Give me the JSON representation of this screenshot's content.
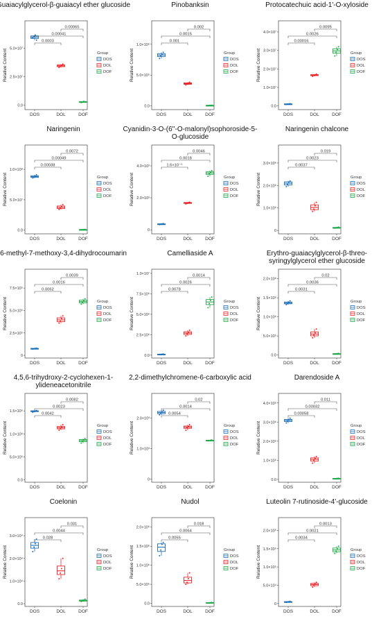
{
  "legend": {
    "title": "Group",
    "groups": [
      "DOS",
      "DOL",
      "DOF"
    ]
  },
  "colors": {
    "DOS": "#1f6fb5",
    "DOL": "#e8262a",
    "DOF": "#22a84a"
  },
  "ylabel": "Relative Content",
  "chart_data": [
    {
      "type": "box",
      "title": "Guaiacylglycerol-β-guaiacyl ether glucoside",
      "categories": [
        "DOS",
        "DOL",
        "DOF"
      ],
      "yticks": [
        {
          "v": 0,
          "l": "0.0"
        },
        {
          "v": 25000000,
          "l": "2.5×10⁷"
        },
        {
          "v": 50000000,
          "l": "5.0×10⁷"
        }
      ],
      "ylim": [
        -4000000,
        74000000
      ],
      "series": [
        {
          "name": "DOS",
          "values": [
            59000000,
            60500000,
            61500000,
            57000000
          ]
        },
        {
          "name": "DOL",
          "values": [
            33000000,
            34000000,
            35000000,
            36000000
          ]
        },
        {
          "name": "DOF",
          "values": [
            2200000,
            2700000,
            3200000,
            3000000
          ]
        }
      ],
      "pvalues": [
        {
          "from": 0,
          "to": 1,
          "label": "0.0003"
        },
        {
          "from": 0,
          "to": 2,
          "label": "0.00041"
        },
        {
          "from": 1,
          "to": 2,
          "label": "0.00065"
        }
      ]
    },
    {
      "type": "box",
      "title": "Pinobanksin",
      "categories": [
        "DOS",
        "DOL",
        "DOF"
      ],
      "yticks": [
        {
          "v": 0,
          "l": "0.0"
        },
        {
          "v": 500000,
          "l": "5.0×10⁵"
        },
        {
          "v": 1000000,
          "l": "1.0×10⁶"
        }
      ],
      "ylim": [
        -60000,
        1380000
      ],
      "series": [
        {
          "name": "DOS",
          "values": [
            770000,
            810000,
            840000,
            870000
          ]
        },
        {
          "name": "DOL",
          "values": [
            340000,
            355000,
            370000,
            385000
          ]
        },
        {
          "name": "DOF",
          "values": [
            5000,
            8000,
            10000,
            12000
          ]
        }
      ],
      "pvalues": [
        {
          "from": 0,
          "to": 1,
          "label": "0.001"
        },
        {
          "from": 0,
          "to": 2,
          "label": "0.0015"
        },
        {
          "from": 1,
          "to": 2,
          "label": "0.002"
        }
      ]
    },
    {
      "type": "box",
      "title": "Protocatechuic acid-1'-O-xyloside",
      "categories": [
        "DOS",
        "DOL",
        "DOF"
      ],
      "yticks": [
        {
          "v": 0,
          "l": "0.0"
        },
        {
          "v": 10000000,
          "l": "1.0×10⁷"
        },
        {
          "v": 20000000,
          "l": "2.0×10⁷"
        },
        {
          "v": 30000000,
          "l": "3.0×10⁷"
        },
        {
          "v": 40000000,
          "l": "4.0×10⁷"
        }
      ],
      "ylim": [
        -2000000,
        46000000
      ],
      "series": [
        {
          "name": "DOS",
          "values": [
            800000,
            1000000,
            1100000,
            1200000
          ]
        },
        {
          "name": "DOL",
          "values": [
            16000000,
            16500000,
            16800000,
            17200000
          ]
        },
        {
          "name": "DOF",
          "values": [
            27000000,
            29000000,
            30500000,
            32000000
          ]
        }
      ],
      "pvalues": [
        {
          "from": 0,
          "to": 1,
          "label": "0.00016"
        },
        {
          "from": 0,
          "to": 2,
          "label": "0.0026"
        },
        {
          "from": 1,
          "to": 2,
          "label": "0.0095"
        }
      ]
    },
    {
      "type": "box",
      "title": "Naringenin",
      "categories": [
        "DOS",
        "DOL",
        "DOF"
      ],
      "yticks": [
        {
          "v": 0,
          "l": "0.0"
        },
        {
          "v": 50000000,
          "l": "5.0×10⁷"
        },
        {
          "v": 100000000,
          "l": "1.0×10⁸"
        }
      ],
      "ylim": [
        -6000000,
        140000000
      ],
      "series": [
        {
          "name": "DOS",
          "values": [
            86000000,
            87000000,
            89000000,
            91000000
          ]
        },
        {
          "name": "DOL",
          "values": [
            34000000,
            36000000,
            39000000,
            42000000
          ]
        },
        {
          "name": "DOF",
          "values": [
            700000,
            900000,
            1100000,
            1300000
          ]
        }
      ],
      "pvalues": [
        {
          "from": 0,
          "to": 1,
          "label": "0.00038"
        },
        {
          "from": 0,
          "to": 2,
          "label": "0.00049"
        },
        {
          "from": 1,
          "to": 2,
          "label": "0.0072"
        }
      ]
    },
    {
      "type": "box",
      "title": "Cyanidin-3-O-(6''-O-malonyl)sophoroside-5-O-glucoside",
      "categories": [
        "DOS",
        "DOL",
        "DOF"
      ],
      "yticks": [
        {
          "v": 0,
          "l": "0"
        },
        {
          "v": 2000,
          "l": "2.0×10³"
        },
        {
          "v": 4000,
          "l": "4.0×10³"
        }
      ],
      "ylim": [
        -250,
        5300
      ],
      "series": [
        {
          "name": "DOS",
          "values": [
            330,
            350,
            370,
            390
          ]
        },
        {
          "name": "DOL",
          "values": [
            1620,
            1660,
            1700,
            1730
          ]
        },
        {
          "name": "DOF",
          "values": [
            3350,
            3500,
            3600,
            3700
          ]
        }
      ],
      "pvalues": [
        {
          "from": 0,
          "to": 1,
          "label": "1.6×10⁻⁵"
        },
        {
          "from": 0,
          "to": 2,
          "label": "0.0018"
        },
        {
          "from": 1,
          "to": 2,
          "label": "0.0046"
        }
      ]
    },
    {
      "type": "box",
      "title": "Naringenin chalcone",
      "categories": [
        "DOS",
        "DOL",
        "DOF"
      ],
      "yticks": [
        {
          "v": 0,
          "l": "0"
        },
        {
          "v": 1000000,
          "l": "1.0×10⁶"
        },
        {
          "v": 2000000,
          "l": "2.0×10⁶"
        },
        {
          "v": 3000000,
          "l": "3.0×10⁶"
        }
      ],
      "ylim": [
        -150000,
        3800000
      ],
      "series": [
        {
          "name": "DOS",
          "values": [
            1950000,
            2050000,
            2150000,
            2200000
          ]
        },
        {
          "name": "DOL",
          "values": [
            850000,
            950000,
            1100000,
            1250000
          ]
        },
        {
          "name": "DOF",
          "values": [
            100000,
            120000,
            130000,
            150000
          ]
        }
      ],
      "pvalues": [
        {
          "from": 0,
          "to": 1,
          "label": "0.0037"
        },
        {
          "from": 0,
          "to": 2,
          "label": "0.0023"
        },
        {
          "from": 1,
          "to": 2,
          "label": "0.019"
        }
      ]
    },
    {
      "type": "box",
      "title": "6-methyl-7-methoxy-3,4-dihydrocoumarin",
      "categories": [
        "DOS",
        "DOL",
        "DOF"
      ],
      "yticks": [
        {
          "v": 0,
          "l": "0"
        },
        {
          "v": 250000,
          "l": "2.5×10⁵"
        },
        {
          "v": 500000,
          "l": "5.0×10⁵"
        },
        {
          "v": 750000,
          "l": "7.5×10⁵"
        }
      ],
      "ylim": [
        -30000,
        960000
      ],
      "series": [
        {
          "name": "DOS",
          "values": [
            70000,
            74000,
            77000,
            80000
          ]
        },
        {
          "name": "DOL",
          "values": [
            360000,
            380000,
            410000,
            440000
          ]
        },
        {
          "name": "DOF",
          "values": [
            570000,
            590000,
            610000,
            630000
          ]
        }
      ],
      "pvalues": [
        {
          "from": 0,
          "to": 1,
          "label": "0.0062"
        },
        {
          "from": 0,
          "to": 2,
          "label": "0.0016"
        },
        {
          "from": 1,
          "to": 2,
          "label": "0.0039"
        }
      ]
    },
    {
      "type": "box",
      "title": "Camelliaside A",
      "categories": [
        "DOS",
        "DOL",
        "DOF"
      ],
      "yticks": [
        {
          "v": 0,
          "l": "0.0"
        },
        {
          "v": 2500000,
          "l": "2.5×10⁶"
        },
        {
          "v": 5000000,
          "l": "5.0×10⁶"
        },
        {
          "v": 7500000,
          "l": "7.5×10⁶"
        },
        {
          "v": 10000000,
          "l": "1.0×10⁷"
        }
      ],
      "ylim": [
        -350000,
        10500000
      ],
      "series": [
        {
          "name": "DOS",
          "values": [
            80000,
            100000,
            120000,
            140000
          ]
        },
        {
          "name": "DOL",
          "values": [
            2350000,
            2600000,
            2800000,
            3050000
          ]
        },
        {
          "name": "DOF",
          "values": [
            5800000,
            6300000,
            6700000,
            7100000
          ]
        }
      ],
      "pvalues": [
        {
          "from": 0,
          "to": 1,
          "label": "0.0078"
        },
        {
          "from": 0,
          "to": 2,
          "label": "0.0026"
        },
        {
          "from": 1,
          "to": 2,
          "label": "0.0014"
        }
      ]
    },
    {
      "type": "box",
      "title": "Erythro-guaiacylglycerol-β-threo-syringylglycerol ether glucoside",
      "categories": [
        "DOS",
        "DOL",
        "DOF"
      ],
      "yticks": [
        {
          "v": 0,
          "l": "0.0"
        },
        {
          "v": 500000,
          "l": "5.0×10⁵"
        },
        {
          "v": 1000000,
          "l": "1.0×10⁶"
        },
        {
          "v": 1500000,
          "l": "1.5×10⁶"
        },
        {
          "v": 2000000,
          "l": "2.0×10⁶"
        }
      ],
      "ylim": [
        -80000,
        2250000
      ],
      "series": [
        {
          "name": "DOS",
          "values": [
            1320000,
            1350000,
            1380000,
            1420000
          ]
        },
        {
          "name": "DOL",
          "values": [
            450000,
            520000,
            580000,
            680000
          ]
        },
        {
          "name": "DOF",
          "values": [
            25000,
            30000,
            35000,
            40000
          ]
        }
      ],
      "pvalues": [
        {
          "from": 0,
          "to": 1,
          "label": "0.0031"
        },
        {
          "from": 0,
          "to": 2,
          "label": "0.0036"
        },
        {
          "from": 1,
          "to": 2,
          "label": "0.02"
        }
      ]
    },
    {
      "type": "box",
      "title": "4,5,6-trihydroxy-2-cyclohexen-1-ylideneacetonitrile",
      "categories": [
        "DOS",
        "DOL",
        "DOF"
      ],
      "yticks": [
        {
          "v": 0,
          "l": "0.0"
        },
        {
          "v": 500000,
          "l": "5.0×10⁵"
        },
        {
          "v": 1000000,
          "l": "1.0×10⁶"
        },
        {
          "v": 1500000,
          "l": "1.5×10⁶"
        }
      ],
      "ylim": [
        -50000,
        1880000
      ],
      "series": [
        {
          "name": "DOS",
          "values": [
            1470000,
            1490000,
            1500000,
            1510000
          ]
        },
        {
          "name": "DOL",
          "values": [
            1080000,
            1120000,
            1150000,
            1200000
          ]
        },
        {
          "name": "DOF",
          "values": [
            800000,
            840000,
            870000,
            900000
          ]
        }
      ],
      "pvalues": [
        {
          "from": 0,
          "to": 1,
          "label": "0.0042"
        },
        {
          "from": 0,
          "to": 2,
          "label": "0.0023"
        },
        {
          "from": 1,
          "to": 2,
          "label": "0.0082"
        }
      ]
    },
    {
      "type": "box",
      "title": "2,2-dimethylchromene-6-carboxylic acid",
      "categories": [
        "DOS",
        "DOL",
        "DOF"
      ],
      "yticks": [
        {
          "v": 0,
          "l": "0"
        },
        {
          "v": 1000,
          "l": "1.0×10³"
        },
        {
          "v": 2000,
          "l": "2.0×10³"
        }
      ],
      "ylim": [
        -100,
        2800
      ],
      "series": [
        {
          "name": "DOS",
          "values": [
            2100,
            2150,
            2200,
            2250
          ]
        },
        {
          "name": "DOL",
          "values": [
            1600,
            1680,
            1720,
            1780
          ]
        },
        {
          "name": "DOF",
          "values": [
            1250,
            1260,
            1270,
            1280
          ]
        }
      ],
      "pvalues": [
        {
          "from": 0,
          "to": 1,
          "label": "0.0054"
        },
        {
          "from": 0,
          "to": 2,
          "label": "0.0014"
        },
        {
          "from": 1,
          "to": 2,
          "label": "0.02"
        }
      ]
    },
    {
      "type": "box",
      "title": "Darendoside A",
      "categories": [
        "DOS",
        "DOL",
        "DOF"
      ],
      "yticks": [
        {
          "v": 0,
          "l": "0.0"
        },
        {
          "v": 1000000,
          "l": "1.0×10⁶"
        },
        {
          "v": 2000000,
          "l": "2.0×10⁶"
        },
        {
          "v": 3000000,
          "l": "3.0×10⁶"
        },
        {
          "v": 4000000,
          "l": "4.0×10⁶"
        }
      ],
      "ylim": [
        -150000,
        4500000
      ],
      "series": [
        {
          "name": "DOS",
          "values": [
            2950000,
            3050000,
            3120000,
            3200000
          ]
        },
        {
          "name": "DOL",
          "values": [
            850000,
            1000000,
            1100000,
            1200000
          ]
        },
        {
          "name": "DOF",
          "values": [
            30000,
            40000,
            50000,
            60000
          ]
        }
      ],
      "pvalues": [
        {
          "from": 0,
          "to": 1,
          "label": "0.00058"
        },
        {
          "from": 0,
          "to": 2,
          "label": "0.00032"
        },
        {
          "from": 1,
          "to": 2,
          "label": "0.011"
        }
      ]
    },
    {
      "type": "box",
      "title": "Coelonin",
      "categories": [
        "DOS",
        "DOL",
        "DOF"
      ],
      "yticks": [
        {
          "v": 0,
          "l": "0.0"
        },
        {
          "v": 10000,
          "l": "1.0×10⁴"
        },
        {
          "v": 20000,
          "l": "2.0×10⁴"
        },
        {
          "v": 30000,
          "l": "3.0×10⁴"
        }
      ],
      "ylim": [
        -1200,
        38000
      ],
      "series": [
        {
          "name": "DOS",
          "values": [
            23000,
            25000,
            26500,
            28500
          ]
        },
        {
          "name": "DOL",
          "values": [
            11000,
            13500,
            15500,
            20000
          ]
        },
        {
          "name": "DOF",
          "values": [
            1000,
            1200,
            1500,
            2000
          ]
        }
      ],
      "pvalues": [
        {
          "from": 0,
          "to": 1,
          "label": "0.028"
        },
        {
          "from": 0,
          "to": 2,
          "label": "0.0044"
        },
        {
          "from": 1,
          "to": 2,
          "label": "0.031"
        }
      ]
    },
    {
      "type": "box",
      "title": "Nudol",
      "categories": [
        "DOS",
        "DOL",
        "DOF"
      ],
      "yticks": [
        {
          "v": 0,
          "l": "0.0"
        },
        {
          "v": 500000,
          "l": "5.0×10⁵"
        },
        {
          "v": 1000000,
          "l": "1.0×10⁶"
        },
        {
          "v": 1500000,
          "l": "1.5×10⁶"
        },
        {
          "v": 2000000,
          "l": "2.0×10⁶"
        }
      ],
      "ylim": [
        -80000,
        2250000
      ],
      "series": [
        {
          "name": "DOS",
          "values": [
            1250000,
            1400000,
            1550000,
            1600000
          ]
        },
        {
          "name": "DOL",
          "values": [
            500000,
            550000,
            650000,
            800000
          ]
        },
        {
          "name": "DOF",
          "values": [
            10000,
            15000,
            20000,
            25000
          ]
        }
      ],
      "pvalues": [
        {
          "from": 0,
          "to": 1,
          "label": "0.0055"
        },
        {
          "from": 0,
          "to": 2,
          "label": "0.0064"
        },
        {
          "from": 1,
          "to": 2,
          "label": "0.018"
        }
      ]
    },
    {
      "type": "box",
      "title": "Luteolin 7-rutinoside-4'-glucoside",
      "categories": [
        "DOS",
        "DOL",
        "DOF"
      ],
      "yticks": [
        {
          "v": 0,
          "l": "0"
        },
        {
          "v": 50000,
          "l": "5.0×10⁴"
        },
        {
          "v": 100000,
          "l": "1.0×10⁵"
        },
        {
          "v": 150000,
          "l": "1.5×10⁵"
        },
        {
          "v": 200000,
          "l": "2.0×10⁵"
        }
      ],
      "ylim": [
        -8000,
        235000
      ],
      "series": [
        {
          "name": "DOS",
          "values": [
            3000,
            4000,
            5000,
            6000
          ]
        },
        {
          "name": "DOL",
          "values": [
            45000,
            50000,
            54000,
            58000
          ]
        },
        {
          "name": "DOF",
          "values": [
            137000,
            143000,
            150000,
            157000
          ]
        }
      ],
      "pvalues": [
        {
          "from": 0,
          "to": 1,
          "label": "0.0034"
        },
        {
          "from": 0,
          "to": 2,
          "label": "0.0021"
        },
        {
          "from": 1,
          "to": 2,
          "label": "0.0013"
        }
      ]
    }
  ]
}
